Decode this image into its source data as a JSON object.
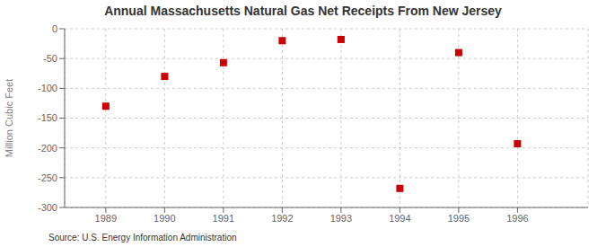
{
  "chart_data": {
    "type": "scatter",
    "title": "Annual Massachusetts Natural Gas Net Receipts From New Jersey",
    "ylabel": "Million Cubic Feet",
    "annotations": [
      "Source: U.S. Energy Information Administration"
    ],
    "x": [
      1989,
      1990,
      1991,
      1992,
      1993,
      1994,
      1995,
      1996
    ],
    "values": [
      -130,
      -80,
      -57,
      -20,
      -18,
      -268,
      -40,
      -193
    ],
    "color": "#cc0000",
    "marker": "square",
    "xlim": [
      1988.3,
      1997.2
    ],
    "ylim": [
      -300,
      0
    ],
    "xticks": [
      1989,
      1990,
      1991,
      1992,
      1993,
      1994,
      1995,
      1996
    ],
    "yticks": [
      0,
      -50,
      -100,
      -150,
      -200,
      -250,
      -300
    ],
    "grid": true
  }
}
